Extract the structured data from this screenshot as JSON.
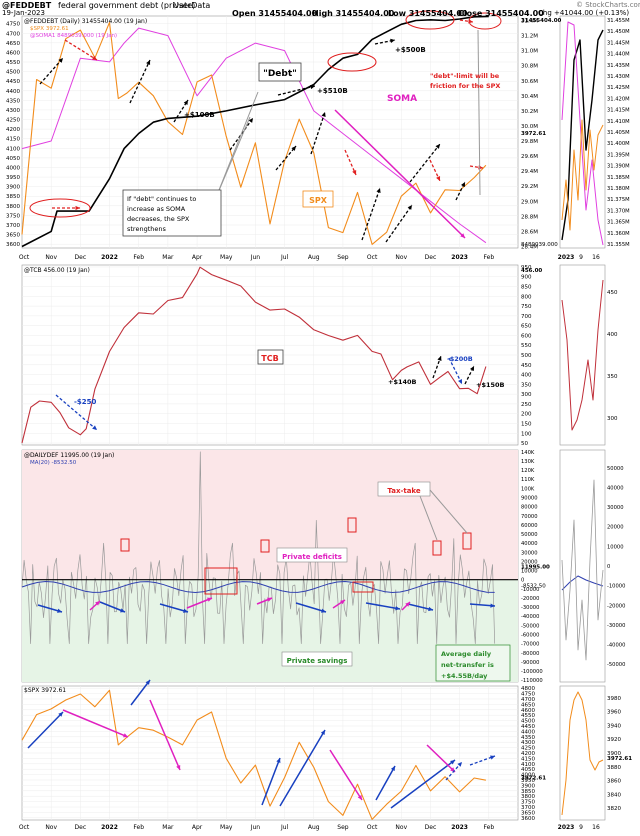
{
  "header": {
    "symbol": "@FEDDEBT",
    "description": "federal government debt (private)",
    "source": "UserData",
    "date": "19-Jan-2023",
    "open": "Open 31455404.00",
    "high": "High 31455404.00",
    "low": "Low 31455404.00",
    "close": "Close 31455404.00",
    "chg": "Chg +41044.00 (+0.13%)",
    "watermark": "© StockCharts.com"
  },
  "colors": {
    "debt": "#000000",
    "spx": "#f28c1c",
    "soma": "#e040e0",
    "tcb": "#c0303a",
    "dailydef": "#9a9a9a",
    "ma20": "#3040b0",
    "red": "#e02020",
    "magenta": "#e020c0",
    "blue": "#1840c0",
    "green": "#2a8a2a",
    "deficit_bg": "#fbe6e8",
    "savings_bg": "#e6f4e6"
  },
  "x_months": [
    "Oct",
    "Nov",
    "Dec",
    "2022",
    "Feb",
    "Mar",
    "Apr",
    "May",
    "Jun",
    "Jul",
    "Aug",
    "Sep",
    "Oct",
    "Nov",
    "Dec",
    "2023",
    "Feb",
    "Mar"
  ],
  "side_months": [
    "2023",
    "9",
    "16"
  ],
  "chart_data": [
    {
      "type": "line",
      "panel": "debt_spx_soma",
      "legend": [
        "@FEDDEBT (Daily) 31455404.00 (19 Jan)",
        "$SPX 3972.61",
        "@SOMA1 8489039.000 (19 Jan)"
      ],
      "left_axis": {
        "ticks": [
          3600,
          3650,
          3700,
          3750,
          3800,
          3850,
          3900,
          3950,
          4000,
          4050,
          4100,
          4150,
          4200,
          4250,
          4300,
          4350,
          4400,
          4450,
          4500,
          4550,
          4600,
          4650,
          4700,
          4750
        ],
        "ylim": [
          3580,
          4790
        ]
      },
      "right_axis": {
        "ticks": [
          "28.4M",
          "28.6M",
          "28.8M",
          "29.0M",
          "29.2M",
          "29.4M",
          "29.6M",
          "29.8M",
          "30.0M",
          "30.2M",
          "30.4M",
          "30.6M",
          "30.8M",
          "31.0M",
          "31.2M",
          "31.4M"
        ],
        "ylim": [
          28.38,
          31.46
        ]
      },
      "side_axis": {
        "ticks": [
          "31.355M",
          "31.360M",
          "31.365M",
          "31.370M",
          "31.375M",
          "31.380M",
          "31.385M",
          "31.390M",
          "31.395M",
          "31.400M",
          "31.405M",
          "31.410M",
          "31.415M",
          "31.420M",
          "31.425M",
          "31.430M",
          "31.435M",
          "31.440M",
          "31.445M",
          "31.450M",
          "31.455M"
        ]
      },
      "value_labels": [
        "31455404.00",
        "3972.61",
        "8489039.000"
      ],
      "series": [
        {
          "name": "@FEDDEBT",
          "x": [
            0,
            1,
            1.2,
            2,
            2.3,
            3.0,
            3.5,
            4,
            4.5,
            5,
            6,
            7,
            8,
            9,
            10,
            10.5,
            11,
            11.5,
            12,
            12.5,
            13,
            13.5,
            14,
            14.5,
            15,
            15.5,
            16
          ],
          "y": [
            28.4,
            28.6,
            28.87,
            28.87,
            28.87,
            29.3,
            29.7,
            29.9,
            30.05,
            30.1,
            30.13,
            30.2,
            30.28,
            30.35,
            30.55,
            30.75,
            30.9,
            30.95,
            31.15,
            31.25,
            31.35,
            31.4,
            31.41,
            31.4,
            31.42,
            31.45,
            31.455
          ]
        },
        {
          "name": "$SPX",
          "x": [
            0,
            0.5,
            1,
            1.5,
            2,
            2.5,
            3,
            3.3,
            3.6,
            4,
            4.5,
            5,
            5.5,
            6,
            6.5,
            7,
            7.5,
            8,
            8.5,
            9,
            9.5,
            10,
            10.5,
            11,
            11.5,
            12,
            12.5,
            13,
            13.5,
            14,
            14.5,
            15,
            15.5,
            15.9
          ],
          "y": [
            3650,
            4450,
            4400,
            4650,
            4700,
            4550,
            4750,
            4350,
            4400,
            4450,
            4400,
            4250,
            4200,
            4450,
            4500,
            4150,
            3900,
            4100,
            3700,
            4000,
            4250,
            4050,
            3700,
            3650,
            3900,
            3600,
            3700,
            3850,
            3950,
            3750,
            3900,
            3850,
            3950,
            3972.61
          ]
        },
        {
          "name": "@SOMA1",
          "x": [
            0,
            1,
            2,
            3,
            3.5,
            4,
            5,
            6,
            7,
            8,
            9,
            10,
            11,
            12,
            13,
            14,
            15,
            15.9
          ],
          "y": [
            29.7,
            29.8,
            30.9,
            30.85,
            31.1,
            31.3,
            31.2,
            30.4,
            30.9,
            31.1,
            31.0,
            30.2,
            29.9,
            29.6,
            29.3,
            29.0,
            28.7,
            28.45
          ]
        }
      ],
      "annotations": [
        "\"Debt\"",
        "+$100B",
        "+$510B",
        "+$500B",
        "SOMA",
        "SPX",
        "\"debt\"-limit will be friction for the SPX",
        "If \"debt\" continues to increase as SOMA decreases, the SPX strengthens"
      ]
    },
    {
      "type": "line",
      "panel": "tcb",
      "legend": [
        "@TCB 456.00 (19 Jan)"
      ],
      "axis": {
        "ticks": [
          50,
          100,
          150,
          200,
          250,
          300,
          350,
          400,
          450,
          500,
          550,
          600,
          650,
          700,
          750,
          800,
          850,
          900,
          950
        ],
        "ylim": [
          40,
          960
        ]
      },
      "side_ticks": [
        300,
        350,
        400,
        450
      ],
      "value_label": "456.00",
      "series": [
        {
          "name": "@TCB",
          "x": [
            0,
            0.3,
            0.6,
            1,
            1.3,
            1.6,
            2,
            2.2,
            2.5,
            3,
            3.5,
            4,
            4.5,
            5,
            5.5,
            6,
            6.1,
            6.5,
            7,
            7.5,
            8,
            8.5,
            9,
            9.5,
            10,
            10.5,
            11,
            11.5,
            12,
            12.3,
            12.7,
            13,
            13.2,
            13.6,
            14,
            14.3,
            14.6,
            15,
            15.3,
            15.6,
            15.9
          ],
          "y": [
            50,
            230,
            260,
            250,
            200,
            120,
            90,
            120,
            330,
            520,
            650,
            720,
            720,
            780,
            800,
            910,
            950,
            900,
            880,
            840,
            770,
            720,
            740,
            690,
            640,
            600,
            590,
            600,
            530,
            500,
            380,
            410,
            440,
            450,
            350,
            370,
            420,
            320,
            340,
            300,
            456
          ]
        }
      ],
      "annotations": [
        "TCB",
        "-$250",
        "+$140B",
        "-$200B",
        "+$150B"
      ]
    },
    {
      "type": "bar",
      "panel": "dailydef",
      "legend": [
        "@DAILYDEF 11995.00 (19 Jan)",
        "MA(20) -8532.50"
      ],
      "axis": {
        "ticks": [
          "-110000",
          "-100000",
          "-90000",
          "-80000",
          "-70000",
          "-60000",
          "-50000",
          "-40000",
          "-30000",
          "-20000",
          "-10000",
          "0",
          "10000",
          "20000",
          "30000",
          "40000",
          "50000",
          "60000",
          "70000",
          "80000",
          "90000",
          "100K",
          "110K",
          "120K",
          "130K",
          "140K"
        ],
        "ylim": [
          -112000,
          142000
        ]
      },
      "side_ticks": [
        "-50000",
        "-40000",
        "-30000",
        "-20000",
        "-10000",
        "0",
        "10000",
        "20000",
        "30000",
        "40000",
        "50000"
      ],
      "value_labels": [
        "11995.00",
        "-8532.50"
      ],
      "spikes": [
        {
          "x": 2.8,
          "y": 40000
        },
        {
          "x": 6.1,
          "y": 140000
        },
        {
          "x": 7.2,
          "y": 40000
        },
        {
          "x": 10.1,
          "y": 65000
        },
        {
          "x": 13.5,
          "y": 40000
        },
        {
          "x": 14.8,
          "y": 45000
        }
      ],
      "annotations": [
        "Tax-take",
        "Private deficits",
        "Private savings",
        "Average daily net-transfer is +$4.55B/day"
      ]
    },
    {
      "type": "line",
      "panel": "spx",
      "legend": [
        "$SPX 3972.61"
      ],
      "axis": {
        "ticks": [
          3600,
          3650,
          3700,
          3750,
          3800,
          3850,
          3900,
          3950,
          4000,
          4050,
          4100,
          4150,
          4200,
          4250,
          4300,
          4350,
          4400,
          4450,
          4500,
          4550,
          4600,
          4650,
          4700,
          4750,
          4800
        ],
        "ylim": [
          3580,
          4820
        ]
      },
      "side_ticks": [
        3820,
        3840,
        3860,
        3880,
        3900,
        3920,
        3940,
        3960,
        3980
      ],
      "value_label": "3972.61",
      "series": [
        {
          "name": "$SPX",
          "x": [
            0,
            0.5,
            1,
            1.5,
            2,
            2.5,
            3,
            3.3,
            3.6,
            4,
            4.5,
            5,
            5.5,
            6,
            6.5,
            7,
            7.5,
            8,
            8.5,
            9,
            9.5,
            10,
            10.5,
            11,
            11.5,
            12,
            12.5,
            13,
            13.5,
            14,
            14.5,
            15,
            15.5,
            15.9
          ],
          "y": [
            4300,
            4550,
            4600,
            4700,
            4750,
            4650,
            4790,
            4300,
            4350,
            4450,
            4400,
            4350,
            4250,
            4500,
            4550,
            4150,
            3900,
            4100,
            3700,
            4000,
            4300,
            4100,
            3750,
            3650,
            3900,
            3600,
            3700,
            3850,
            4050,
            3850,
            3950,
            3850,
            3950,
            3972.61
          ]
        }
      ]
    }
  ]
}
